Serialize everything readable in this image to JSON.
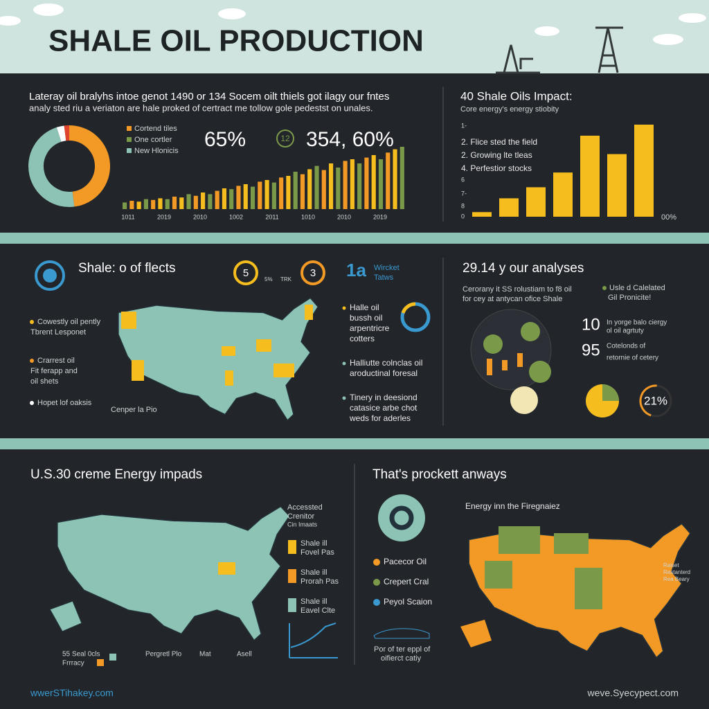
{
  "header": {
    "title": "SHALE OIL PRODUCTION"
  },
  "panel1": {
    "intro": [
      "Lateray oil bralyhs intoe genot 1490 or 134 Socem oilt thiels got ilagy our fntes",
      "analy sted riu a veriaton are hale proked of certract me tollow gole pedestst on unales."
    ],
    "donut": {
      "values": [
        48,
        47,
        3,
        2
      ],
      "colors": [
        "#f39a26",
        "#8cc3b4",
        "#ffffff",
        "#e0442c"
      ]
    },
    "legend": [
      "Cortend tiles",
      "One cortler",
      "New Hlonicis"
    ],
    "stat1": "65%",
    "badge": "12",
    "stat2": "354, 60%",
    "histogram": {
      "values": [
        8,
        10,
        9,
        12,
        11,
        13,
        12,
        15,
        14,
        18,
        16,
        20,
        18,
        22,
        25,
        24,
        28,
        30,
        27,
        33,
        35,
        32,
        38,
        40,
        45,
        42,
        48,
        52,
        47,
        55,
        50,
        58,
        60,
        55,
        62,
        65,
        60,
        68,
        72,
        75
      ],
      "colors": [
        "#7a9a4a",
        "#f39a26",
        "#f5be1e"
      ],
      "x_labels": [
        "1011",
        "2019",
        "2010",
        "1002",
        "2011",
        "1010",
        "2010",
        "2019"
      ]
    }
  },
  "panel2": {
    "title": "40 Shale Oils Impact:",
    "subtitle": "Core energy's energy stiobity",
    "notes": [
      "2.  Flice sted the field",
      "2.  Growing lte tleas",
      "4.  Perfestior stocks"
    ],
    "ticks": [
      "1-",
      "6",
      "7-",
      "8",
      "0"
    ],
    "bars": [
      5,
      20,
      32,
      48,
      88,
      68,
      100
    ],
    "color": "#f5be1e",
    "right_label": "00%"
  },
  "section2": {
    "title": "Shale: o of flects",
    "gauges": [
      "5",
      "3"
    ],
    "gauge_notes": [
      "5%",
      "TRK"
    ],
    "map_notes": [
      "Cowestly oil pently",
      "Tbrent Lesponet",
      "Crarrest oil",
      "Fit ferapp and",
      "oil shets",
      "Hopet lof oaksis",
      "Cenper la Pio"
    ],
    "logo": "1a",
    "logo_lines": [
      "Wircket",
      "Tatws"
    ],
    "list": [
      [
        "Halle oil",
        "bussh oil",
        "arpentricre",
        "cotters"
      ],
      [
        "Halliutte colnclas oil",
        "aroductinal foresal"
      ],
      [
        "Tinery in deesiond",
        "catasice arbe chot",
        "weds for aderles"
      ]
    ]
  },
  "section2r": {
    "title": "29.14 y our analyses",
    "text": [
      "Cerorany it SS rolustiam to f8 oil",
      "for cey at antycan ofice Shale"
    ],
    "note": [
      "Usle d Calelated",
      "Gil Pronicite!"
    ],
    "stats": [
      {
        "value": "10",
        "text": [
          "In yorge balo ciergy",
          "ol oil agrtuty"
        ]
      },
      {
        "value": "95",
        "text": [
          "Cotelonds of",
          "retornie of cetery"
        ]
      }
    ],
    "percent": 21,
    "percent_label": "21%"
  },
  "section3": {
    "title": "U.S.30 creme Energy impads",
    "legend_title": [
      "Accessted",
      "Crenitor",
      "Cin Imaats"
    ],
    "legend": [
      {
        "lines": [
          "Shale ill",
          "Fovel Pas"
        ],
        "color": "#f5be1e"
      },
      {
        "lines": [
          "Shale ill",
          "Prorah Pas"
        ],
        "color": "#f39a26"
      },
      {
        "lines": [
          "Shale ill",
          "Eavel Clte"
        ],
        "color": "#8cc3b4"
      }
    ],
    "bottom": [
      "55 Seal 0cls",
      "Frrracy",
      "Pergretl Plo",
      "Mat",
      "Asell"
    ]
  },
  "section3r": {
    "title": "That's prockett anways",
    "map_title": "Energy inn the Firegnaiez",
    "legend": [
      {
        "label": "Pacecor Oil",
        "color": "#f39a26"
      },
      {
        "label": "Crepert Cral",
        "color": "#7a9a4a"
      },
      {
        "label": "Peyol Scaion",
        "color": "#3a9ad0"
      }
    ],
    "map_notes": [
      "Raiset",
      "Restanterd",
      "Rea Beary"
    ],
    "caption": [
      "Por of ter eppl of",
      "oifierct catiy"
    ]
  },
  "footer": {
    "left": "wwerSTihakey.com",
    "right": "weve.Syecypect.com"
  }
}
